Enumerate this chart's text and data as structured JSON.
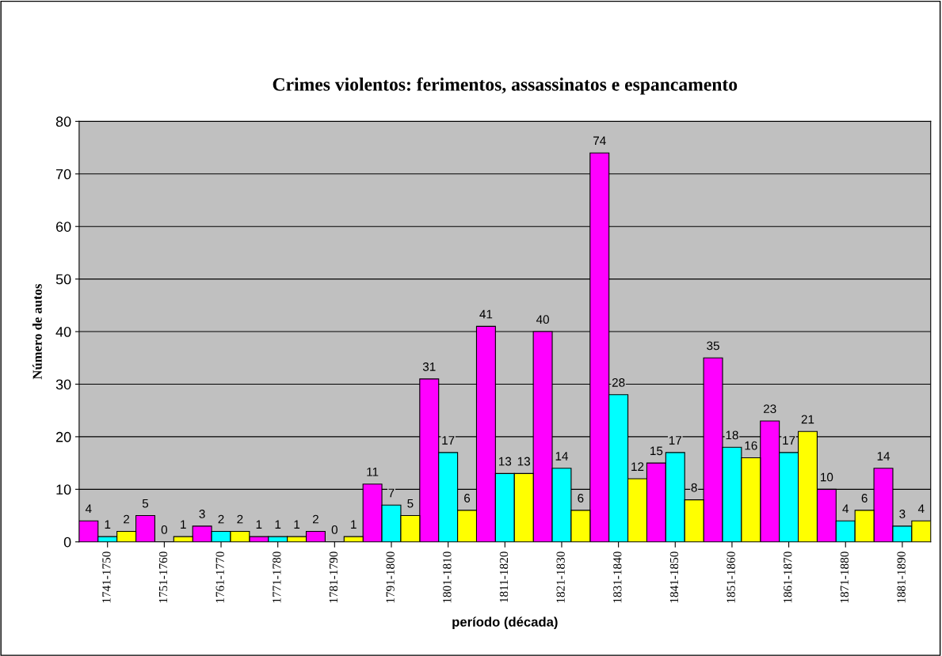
{
  "chart_data": {
    "type": "bar",
    "title": "Crimes violentos: ferimentos, assassinatos e espancamento",
    "xlabel": "período (década)",
    "ylabel": "Número de autos",
    "categories": [
      "1741-1750",
      "1751-1760",
      "1761-1770",
      "1771-1780",
      "1781-1790",
      "1791-1800",
      "1801-1810",
      "1811-1820",
      "1821-1830",
      "1831-1840",
      "1841-1850",
      "1851-1860",
      "1861-1870",
      "1871-1880",
      "1881-1890"
    ],
    "series": [
      {
        "color": "#ff00ff",
        "values": [
          4,
          5,
          3,
          1,
          2,
          11,
          31,
          41,
          40,
          74,
          15,
          35,
          23,
          10,
          14
        ]
      },
      {
        "color": "#00ffff",
        "values": [
          1,
          0,
          2,
          1,
          0,
          7,
          17,
          13,
          14,
          28,
          17,
          18,
          17,
          4,
          3
        ]
      },
      {
        "color": "#ffff00",
        "values": [
          2,
          1,
          2,
          1,
          1,
          5,
          6,
          13,
          6,
          12,
          8,
          16,
          21,
          6,
          4
        ]
      }
    ],
    "ylim": [
      0,
      80
    ],
    "yticks": [
      0,
      10,
      20,
      30,
      40,
      50,
      60,
      70,
      80
    ],
    "grid": "y",
    "data_labels": true
  }
}
